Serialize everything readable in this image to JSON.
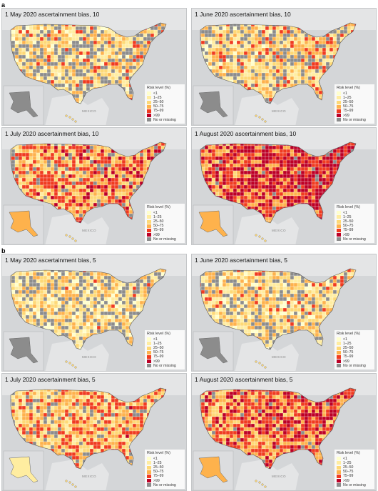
{
  "sections": [
    {
      "label": "a",
      "panels": [
        {
          "title": "1 May 2020 ascertainment bias, 10",
          "heat": 0.25,
          "gray": 0.3
        },
        {
          "title": "1 June 2020 ascertainment bias, 10",
          "heat": 0.3,
          "gray": 0.22
        },
        {
          "title": "1 July 2020 ascertainment bias, 10",
          "heat": 0.55,
          "gray": 0.12
        },
        {
          "title": "1 August 2020 ascertainment bias, 10",
          "heat": 0.85,
          "gray": 0.03
        }
      ]
    },
    {
      "label": "b",
      "panels": [
        {
          "title": "1 May 2020 ascertainment bias, 5",
          "heat": 0.18,
          "gray": 0.28
        },
        {
          "title": "1 June 2020 ascertainment bias, 5",
          "heat": 0.22,
          "gray": 0.2
        },
        {
          "title": "1 July 2020 ascertainment bias, 5",
          "heat": 0.4,
          "gray": 0.12
        },
        {
          "title": "1 August 2020 ascertainment bias, 5",
          "heat": 0.65,
          "gray": 0.04
        }
      ]
    }
  ],
  "legend": {
    "title": "Risk level (%)",
    "items": [
      {
        "label": "<1",
        "color": "#ffffcc"
      },
      {
        "label": "1–25",
        "color": "#ffeda0"
      },
      {
        "label": "25–50",
        "color": "#fed976"
      },
      {
        "label": "50–75",
        "color": "#feb24c"
      },
      {
        "label": "75–99",
        "color": "#f03b20"
      },
      {
        "label": ">99",
        "color": "#bd0026"
      },
      {
        "label": "No or missing",
        "color": "#8c8c8c"
      }
    ]
  },
  "place_label": "MEXICO"
}
